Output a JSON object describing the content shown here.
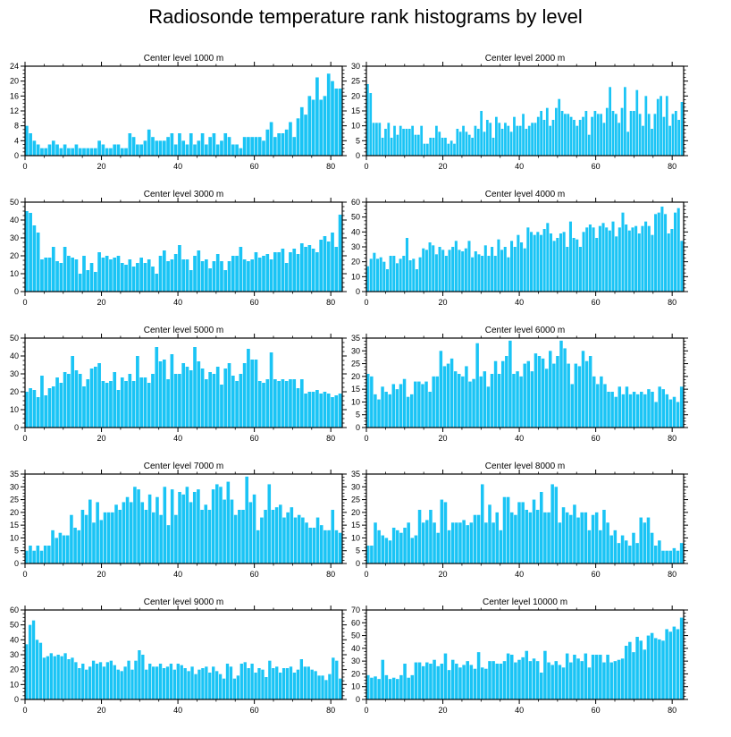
{
  "title": "Radiosonde temperature rank histograms by level",
  "colors": {
    "bar": "#1ac4f5",
    "bar_edge": "#ffffff",
    "axis": "#000000"
  },
  "chart_data": [
    {
      "type": "bar",
      "title": "Center level 1000 m",
      "xlim": [
        0,
        83
      ],
      "ylim": [
        0,
        24
      ],
      "xticks": [
        0,
        20,
        40,
        60,
        80
      ],
      "yticks": [
        0,
        4,
        8,
        12,
        16,
        20,
        24
      ],
      "values": [
        8,
        6,
        4,
        3,
        2,
        2,
        3,
        4,
        3,
        2,
        3,
        2,
        2,
        3,
        2,
        2,
        2,
        2,
        2,
        4,
        3,
        2,
        2,
        3,
        3,
        2,
        2,
        6,
        5,
        3,
        3,
        4,
        7,
        5,
        4,
        4,
        4,
        5,
        6,
        3,
        6,
        4,
        3,
        6,
        3,
        4,
        6,
        3,
        5,
        6,
        3,
        4,
        6,
        5,
        3,
        3,
        2,
        5,
        5,
        5,
        5,
        5,
        4,
        7,
        9,
        5,
        6,
        6,
        7,
        9,
        5,
        10,
        13,
        11,
        16,
        15,
        21,
        15,
        16,
        22,
        20,
        18,
        18
      ]
    },
    {
      "type": "bar",
      "title": "Center level 2000 m",
      "xlim": [
        0,
        83
      ],
      "ylim": [
        0,
        30
      ],
      "xticks": [
        0,
        20,
        40,
        60,
        80
      ],
      "yticks": [
        0,
        5,
        10,
        15,
        20,
        25,
        30
      ],
      "values": [
        24,
        21,
        11,
        11,
        11,
        6,
        9,
        11,
        6,
        10,
        7,
        10,
        9,
        9,
        9,
        10,
        7,
        7,
        10,
        4,
        4,
        6,
        6,
        10,
        8,
        6,
        6,
        4,
        5,
        4,
        9,
        8,
        10,
        8,
        7,
        6,
        10,
        9,
        15,
        8,
        12,
        11,
        6,
        13,
        11,
        9,
        11,
        10,
        8,
        13,
        10,
        10,
        14,
        9,
        10,
        11,
        11,
        13,
        15,
        12,
        16,
        10,
        12,
        16,
        19,
        15,
        14,
        14,
        13,
        12,
        10,
        12,
        13,
        15,
        7,
        13,
        15,
        14,
        14,
        11,
        16,
        23,
        15,
        14,
        11,
        16,
        23,
        8,
        15,
        15,
        22,
        14,
        10,
        20,
        14,
        9,
        14,
        19,
        20,
        13,
        20,
        10,
        14,
        15,
        12,
        18
      ]
    },
    {
      "type": "bar",
      "title": "Center level 3000 m",
      "xlim": [
        0,
        83
      ],
      "ylim": [
        0,
        50
      ],
      "xticks": [
        0,
        20,
        40,
        60,
        80
      ],
      "yticks": [
        0,
        10,
        20,
        30,
        40,
        50
      ],
      "values": [
        45,
        44,
        37,
        33,
        18,
        19,
        19,
        25,
        17,
        16,
        25,
        20,
        19,
        18,
        10,
        20,
        12,
        16,
        11,
        22,
        19,
        20,
        18,
        19,
        20,
        16,
        15,
        18,
        14,
        16,
        19,
        16,
        18,
        14,
        10,
        20,
        23,
        17,
        18,
        21,
        26,
        18,
        18,
        12,
        20,
        23,
        17,
        18,
        13,
        17,
        21,
        17,
        12,
        17,
        20,
        20,
        25,
        18,
        17,
        18,
        22,
        19,
        20,
        21,
        18,
        22,
        22,
        24,
        16,
        22,
        24,
        21,
        27,
        25,
        26,
        24,
        22,
        29,
        31,
        28,
        33,
        25,
        43
      ]
    },
    {
      "type": "bar",
      "title": "Center level 4000 m",
      "xlim": [
        0,
        83
      ],
      "ylim": [
        0,
        60
      ],
      "xticks": [
        0,
        20,
        40,
        60,
        80
      ],
      "yticks": [
        0,
        10,
        20,
        30,
        40,
        50,
        60
      ],
      "values": [
        17,
        22,
        26,
        22,
        23,
        20,
        15,
        24,
        24,
        19,
        22,
        24,
        36,
        21,
        22,
        15,
        23,
        29,
        28,
        33,
        31,
        25,
        30,
        28,
        24,
        28,
        30,
        34,
        28,
        27,
        29,
        34,
        23,
        27,
        25,
        24,
        31,
        24,
        30,
        24,
        35,
        28,
        30,
        23,
        34,
        30,
        38,
        33,
        29,
        43,
        40,
        38,
        40,
        38,
        42,
        46,
        39,
        34,
        36,
        39,
        40,
        30,
        47,
        36,
        35,
        30,
        40,
        43,
        45,
        43,
        36,
        44,
        46,
        43,
        41,
        47,
        37,
        43,
        53,
        45,
        41,
        43,
        44,
        39,
        44,
        47,
        44,
        38,
        52,
        53,
        57,
        52,
        39,
        42,
        53,
        56,
        34
      ]
    },
    {
      "type": "bar",
      "title": "Center level 5000 m",
      "xlim": [
        0,
        83
      ],
      "ylim": [
        0,
        50
      ],
      "xticks": [
        0,
        20,
        40,
        60,
        80
      ],
      "yticks": [
        0,
        10,
        20,
        30,
        40,
        50
      ],
      "values": [
        20,
        22,
        21,
        17,
        29,
        18,
        22,
        23,
        28,
        25,
        31,
        30,
        40,
        32,
        30,
        23,
        27,
        33,
        34,
        36,
        26,
        25,
        26,
        31,
        21,
        28,
        26,
        30,
        26,
        40,
        28,
        28,
        25,
        30,
        45,
        37,
        38,
        27,
        41,
        30,
        30,
        36,
        34,
        32,
        45,
        37,
        33,
        27,
        31,
        30,
        34,
        24,
        33,
        36,
        29,
        26,
        30,
        36,
        44,
        38,
        38,
        26,
        25,
        27,
        42,
        27,
        26,
        27,
        26,
        27,
        27,
        22,
        27,
        19,
        20,
        20,
        21,
        19,
        20,
        19,
        17,
        18,
        19
      ]
    },
    {
      "type": "bar",
      "title": "Center level 6000 m",
      "xlim": [
        0,
        83
      ],
      "ylim": [
        0,
        35
      ],
      "xticks": [
        0,
        20,
        40,
        60,
        80
      ],
      "yticks": [
        0,
        5,
        10,
        15,
        20,
        25,
        30,
        35
      ],
      "values": [
        21,
        20,
        13,
        11,
        16,
        14,
        13,
        17,
        15,
        17,
        19,
        12,
        13,
        18,
        18,
        17,
        18,
        14,
        20,
        20,
        30,
        24,
        25,
        27,
        22,
        21,
        20,
        24,
        18,
        19,
        33,
        20,
        22,
        16,
        21,
        26,
        21,
        26,
        28,
        34,
        21,
        22,
        20,
        25,
        26,
        22,
        29,
        28,
        27,
        23,
        30,
        25,
        28,
        34,
        31,
        25,
        17,
        25,
        24,
        30,
        26,
        28,
        20,
        17,
        20,
        17,
        14,
        14,
        12,
        16,
        13,
        16,
        13,
        14,
        13,
        14,
        13,
        15,
        14,
        10,
        16,
        15,
        13,
        11,
        12,
        10,
        16
      ]
    },
    {
      "type": "bar",
      "title": "Center level 7000 m",
      "xlim": [
        0,
        83
      ],
      "ylim": [
        0,
        35
      ],
      "xticks": [
        0,
        20,
        40,
        60,
        80
      ],
      "yticks": [
        0,
        5,
        10,
        15,
        20,
        25,
        30,
        35
      ],
      "values": [
        5,
        7,
        5,
        7,
        5,
        7,
        7,
        13,
        10,
        12,
        11,
        11,
        19,
        14,
        13,
        21,
        19,
        25,
        16,
        24,
        17,
        20,
        20,
        20,
        23,
        21,
        24,
        26,
        24,
        30,
        29,
        24,
        21,
        27,
        20,
        26,
        19,
        30,
        15,
        29,
        19,
        28,
        27,
        30,
        24,
        28,
        29,
        21,
        23,
        21,
        29,
        31,
        30,
        25,
        32,
        25,
        19,
        21,
        21,
        34,
        24,
        27,
        13,
        18,
        21,
        31,
        21,
        22,
        23,
        18,
        20,
        22,
        18,
        19,
        18,
        16,
        14,
        14,
        18,
        15,
        13,
        13,
        21,
        13,
        12
      ]
    },
    {
      "type": "bar",
      "title": "Center level 8000 m",
      "xlim": [
        0,
        83
      ],
      "ylim": [
        0,
        35
      ],
      "xticks": [
        0,
        20,
        40,
        60,
        80
      ],
      "yticks": [
        0,
        5,
        10,
        15,
        20,
        25,
        30,
        35
      ],
      "values": [
        7,
        7,
        16,
        13,
        11,
        10,
        9,
        14,
        13,
        12,
        14,
        16,
        10,
        11,
        21,
        16,
        17,
        21,
        16,
        12,
        25,
        24,
        13,
        16,
        16,
        16,
        17,
        15,
        16,
        19,
        19,
        31,
        16,
        23,
        16,
        20,
        13,
        26,
        26,
        20,
        19,
        24,
        24,
        21,
        20,
        25,
        21,
        28,
        20,
        20,
        31,
        30,
        16,
        22,
        20,
        19,
        23,
        18,
        20,
        20,
        13,
        19,
        20,
        13,
        21,
        16,
        11,
        13,
        8,
        11,
        9,
        7,
        12,
        8,
        18,
        16,
        18,
        12,
        7,
        9,
        5,
        5,
        5,
        6,
        5,
        8
      ]
    },
    {
      "type": "bar",
      "title": "Center level 9000 m",
      "xlim": [
        0,
        83
      ],
      "ylim": [
        0,
        60
      ],
      "xticks": [
        0,
        20,
        40,
        60,
        80
      ],
      "yticks": [
        0,
        10,
        20,
        30,
        40,
        50,
        60
      ],
      "values": [
        37,
        50,
        53,
        40,
        38,
        28,
        29,
        31,
        29,
        30,
        29,
        31,
        27,
        28,
        25,
        21,
        24,
        20,
        22,
        26,
        24,
        25,
        22,
        25,
        26,
        23,
        20,
        19,
        22,
        26,
        20,
        26,
        33,
        30,
        20,
        24,
        22,
        22,
        24,
        21,
        22,
        24,
        20,
        24,
        23,
        21,
        19,
        22,
        17,
        20,
        21,
        22,
        18,
        22,
        19,
        17,
        14,
        24,
        22,
        14,
        16,
        24,
        25,
        21,
        24,
        18,
        21,
        20,
        15,
        26,
        21,
        22,
        18,
        21,
        21,
        22,
        18,
        20,
        27,
        22,
        22,
        20,
        19,
        16,
        16,
        13,
        17,
        28,
        26,
        14
      ]
    },
    {
      "type": "bar",
      "title": "Center level 10000 m",
      "xlim": [
        0,
        83
      ],
      "ylim": [
        0,
        70
      ],
      "xticks": [
        0,
        20,
        40,
        60,
        80
      ],
      "yticks": [
        0,
        10,
        20,
        30,
        40,
        50,
        60,
        70
      ],
      "values": [
        19,
        17,
        18,
        16,
        31,
        19,
        16,
        17,
        16,
        19,
        28,
        17,
        19,
        29,
        29,
        26,
        29,
        28,
        31,
        26,
        28,
        36,
        23,
        31,
        28,
        25,
        27,
        30,
        27,
        24,
        37,
        25,
        24,
        30,
        30,
        28,
        28,
        30,
        36,
        35,
        29,
        31,
        33,
        38,
        30,
        32,
        30,
        21,
        38,
        29,
        27,
        30,
        27,
        25,
        36,
        29,
        35,
        32,
        30,
        36,
        25,
        35,
        35,
        35,
        29,
        35,
        29,
        30,
        31,
        32,
        42,
        45,
        37,
        49,
        46,
        39,
        50,
        52,
        48,
        47,
        46,
        55,
        53,
        57,
        55,
        64
      ]
    }
  ]
}
